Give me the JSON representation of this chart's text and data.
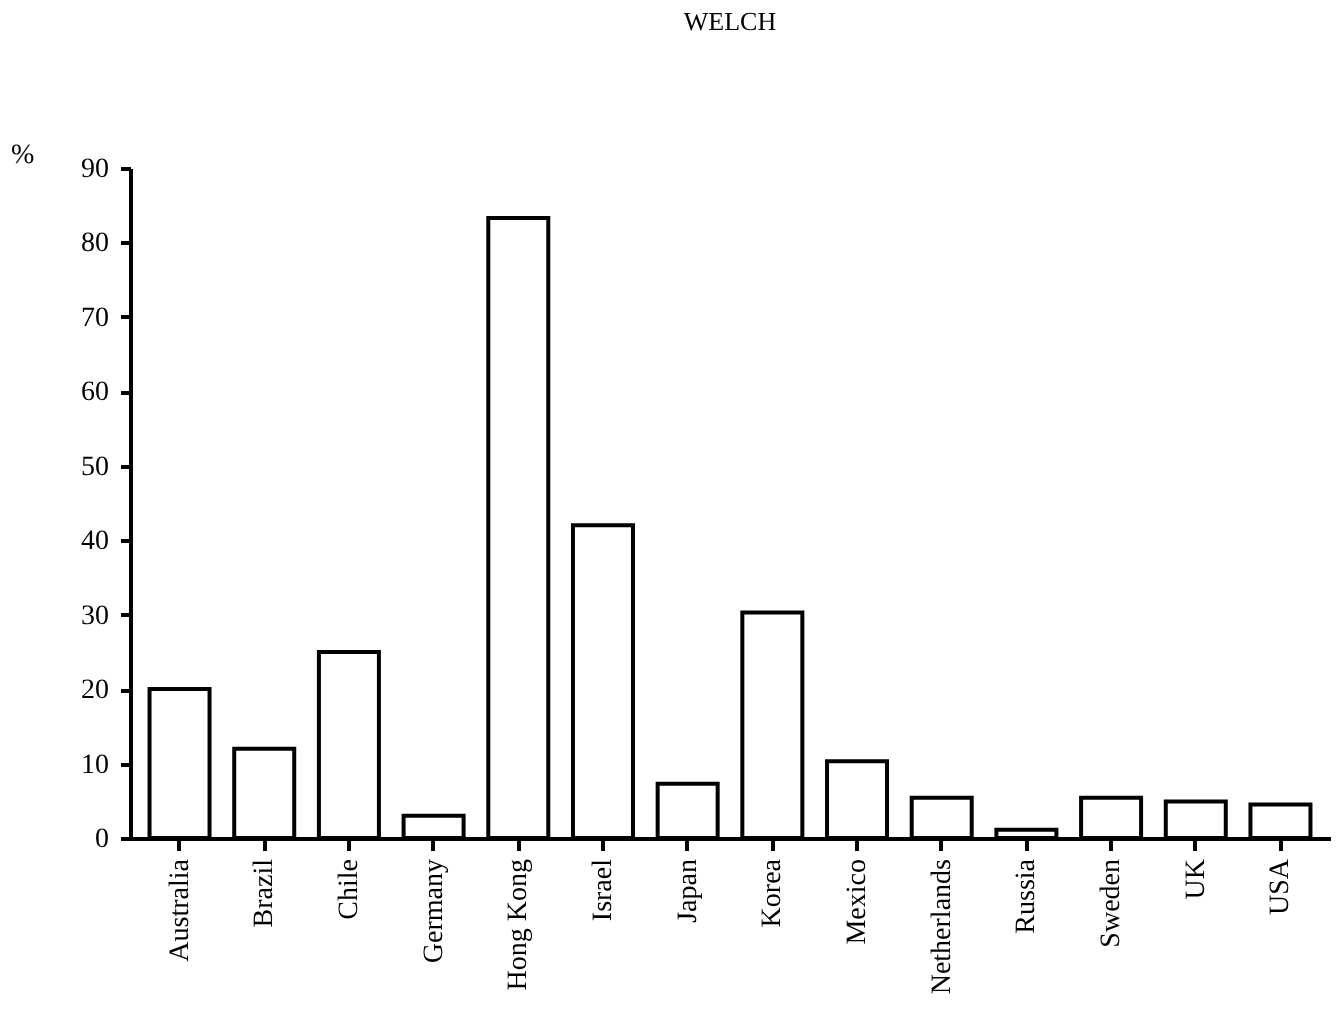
{
  "chart_data": {
    "type": "bar",
    "title": "WELCH",
    "ylabel": "%",
    "categories": [
      "Australia",
      "Brazil",
      "Chile",
      "Germany",
      "Hong Kong",
      "Israel",
      "Japan",
      "Korea",
      "Mexico",
      "Netherlands",
      "Russia",
      "Sweden",
      "UK",
      "USA"
    ],
    "values": [
      20,
      12,
      25,
      3,
      83.3,
      42,
      7.3,
      30.3,
      10.3,
      5.4,
      1.1,
      5.4,
      4.9,
      4.5
    ],
    "color": "#ffffff",
    "ylim": [
      0,
      90
    ],
    "yticks": [
      0,
      10,
      20,
      30,
      40,
      50,
      60,
      70,
      80,
      90
    ],
    "grid": false
  }
}
